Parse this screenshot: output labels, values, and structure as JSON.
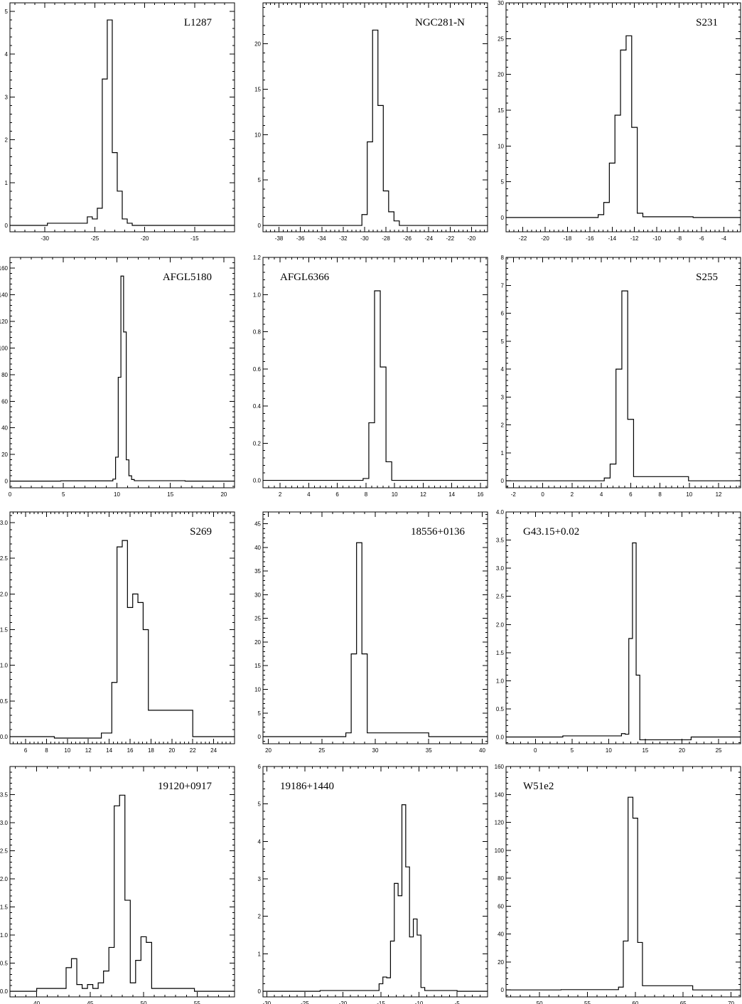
{
  "chart_data": [
    {
      "type": "line",
      "title": "L1287",
      "title_position": "top-right",
      "xlim": [
        -33.5,
        -11
      ],
      "ylim": [
        -0.15,
        5.2
      ],
      "xticks": [
        -30,
        -25,
        -20,
        -15
      ],
      "yticks": [
        0,
        1,
        2,
        3,
        4,
        5
      ],
      "series": [
        {
          "x": [
            -33.5,
            -26,
            -25.5,
            -25,
            -24.5,
            -24,
            -23.5,
            -23,
            -22.5,
            -22,
            -21.5,
            -21,
            -11
          ],
          "y": [
            0.0,
            0.05,
            0.2,
            0.15,
            0.4,
            3.42,
            4.8,
            1.7,
            0.8,
            0.15,
            0.05,
            0.0,
            0.0
          ]
        }
      ]
    },
    {
      "type": "line",
      "title": "NGC281-N",
      "title_position": "top-right",
      "xlim": [
        -39.5,
        -18.5
      ],
      "ylim": [
        -0.7,
        24.5
      ],
      "xticks": [
        -38,
        -36,
        -34,
        -32,
        -30,
        -28,
        -26,
        -24,
        -22,
        -20
      ],
      "yticks": [
        0,
        5,
        10,
        15,
        20
      ],
      "series": [
        {
          "x": [
            -39.5,
            -30.5,
            -30,
            -29.5,
            -29,
            -28.5,
            -28,
            -27.5,
            -27,
            -26.5,
            -18.5
          ],
          "y": [
            0.0,
            0.0,
            1.2,
            9.2,
            21.5,
            13.2,
            3.8,
            1.5,
            0.5,
            0.0,
            0.0
          ]
        }
      ]
    },
    {
      "type": "line",
      "title": "S231",
      "title_position": "top-right",
      "xlim": [
        -23.5,
        -2.5
      ],
      "ylim": [
        -2.0,
        30
      ],
      "xticks": [
        -22,
        -20,
        -18,
        -16,
        -14,
        -12,
        -10,
        -8,
        -6,
        -4
      ],
      "yticks": [
        0,
        5,
        10,
        15,
        20,
        25,
        30
      ],
      "series": [
        {
          "x": [
            -23.5,
            -15.5,
            -15,
            -14.5,
            -14,
            -13.5,
            -13,
            -12.5,
            -12,
            -11.5,
            -11,
            -2.5
          ],
          "y": [
            0.0,
            0.0,
            0.4,
            2.1,
            7.6,
            14.3,
            23.4,
            25.4,
            12.6,
            0.6,
            0.1,
            0.0
          ]
        }
      ]
    },
    {
      "type": "line",
      "title": "AFGL5180",
      "title_position": "top-right",
      "xlim": [
        0,
        21
      ],
      "ylim": [
        -5,
        168
      ],
      "xticks": [
        0,
        5,
        10,
        15,
        20
      ],
      "yticks": [
        0,
        20,
        40,
        60,
        80,
        100,
        120,
        140,
        160
      ],
      "series": [
        {
          "x": [
            0,
            9.5,
            9.75,
            10,
            10.25,
            10.5,
            10.75,
            11,
            11.25,
            11.5,
            11.75,
            21
          ],
          "y": [
            0.0,
            0.2,
            1.5,
            18,
            78,
            154,
            112,
            16,
            4,
            1.2,
            0.3,
            0.0
          ]
        }
      ]
    },
    {
      "type": "line",
      "title": "AFGL6366",
      "title_position": "top-left",
      "xlim": [
        0.8,
        16.5
      ],
      "ylim": [
        -0.04,
        1.2
      ],
      "xticks": [
        2,
        4,
        6,
        8,
        10,
        12,
        14,
        16
      ],
      "yticks": [
        0.0,
        0.2,
        0.4,
        0.6,
        0.8,
        1.0,
        1.2
      ],
      "series": [
        {
          "x": [
            0.8,
            7.6,
            8.0,
            8.4,
            8.8,
            9.2,
            9.6,
            10.0,
            16.5
          ],
          "y": [
            0.0,
            0.0,
            0.01,
            0.31,
            1.02,
            0.61,
            0.1,
            0.0,
            0.0
          ]
        }
      ]
    },
    {
      "type": "line",
      "title": "S255",
      "title_position": "top-right",
      "xlim": [
        -2.5,
        13.5
      ],
      "ylim": [
        -0.25,
        8
      ],
      "xticks": [
        -2,
        0,
        2,
        4,
        6,
        8,
        10,
        12
      ],
      "yticks": [
        0,
        1,
        2,
        3,
        4,
        5,
        6,
        7,
        8
      ],
      "series": [
        {
          "x": [
            -2.5,
            4.0,
            4.4,
            4.8,
            5.2,
            5.6,
            6.0,
            6.4,
            13.5
          ],
          "y": [
            0.0,
            0.0,
            0.1,
            0.6,
            4.0,
            6.8,
            2.2,
            0.15,
            0.0
          ]
        }
      ]
    },
    {
      "type": "line",
      "title": "S269",
      "title_position": "top-right",
      "xlim": [
        4.5,
        26
      ],
      "ylim": [
        -0.1,
        3.15
      ],
      "xticks": [
        6,
        8,
        10,
        12,
        14,
        16,
        18,
        20,
        22,
        24
      ],
      "yticks": [
        0.0,
        0.5,
        1.0,
        1.5,
        2.0,
        2.5,
        3.0
      ],
      "series": [
        {
          "x": [
            4.5,
            13.0,
            13.5,
            14.0,
            14.5,
            15.0,
            15.5,
            16.0,
            16.5,
            17.0,
            17.5,
            18.0,
            26
          ],
          "y": [
            0.0,
            -0.02,
            0.05,
            0.05,
            0.76,
            2.66,
            2.75,
            1.81,
            2.0,
            1.88,
            1.5,
            0.37,
            0.0
          ]
        }
      ]
    },
    {
      "type": "line",
      "title": "18556+0136",
      "title_position": "top-right",
      "xlim": [
        19.5,
        40.5
      ],
      "ylim": [
        -1.5,
        47.5
      ],
      "xticks": [
        20,
        25,
        30,
        35,
        40
      ],
      "yticks": [
        0,
        5,
        10,
        15,
        20,
        25,
        30,
        35,
        40,
        45
      ],
      "series": [
        {
          "x": [
            19.5,
            27.0,
            27.5,
            28.0,
            28.5,
            29.0,
            29.5,
            40.5
          ],
          "y": [
            0.0,
            0.0,
            0.8,
            17.5,
            41.0,
            17.5,
            0.8,
            0.0
          ]
        }
      ]
    },
    {
      "type": "line",
      "title": "G43.15+0.02",
      "title_position": "top-left",
      "xlim": [
        -4,
        28
      ],
      "ylim": [
        -0.12,
        4.0
      ],
      "xticks": [
        0,
        5,
        10,
        15,
        20,
        25
      ],
      "yticks": [
        0.0,
        0.5,
        1.0,
        1.5,
        2.0,
        2.5,
        3.0,
        3.5,
        4.0
      ],
      "series": [
        {
          "x": [
            -4,
            11.5,
            12.0,
            12.5,
            13.0,
            13.5,
            14.0,
            14.5,
            28
          ],
          "y": [
            0.0,
            0.02,
            0.06,
            0.05,
            1.75,
            3.45,
            1.1,
            -0.05,
            0.0
          ]
        }
      ]
    },
    {
      "type": "line",
      "title": "19120+0917",
      "title_position": "top-right",
      "xlim": [
        37.5,
        58.5
      ],
      "ylim": [
        -0.1,
        4.0
      ],
      "xticks": [
        40,
        45,
        50,
        55
      ],
      "yticks": [
        0.0,
        0.5,
        1.0,
        1.5,
        2.0,
        2.5,
        3.0,
        3.5
      ],
      "series": [
        {
          "x": [
            37.5,
            42.5,
            43.0,
            43.5,
            44.0,
            44.5,
            45.0,
            45.5,
            46.0,
            46.5,
            47.0,
            47.5,
            48.0,
            48.5,
            49.0,
            49.5,
            50.0,
            50.5,
            51.0,
            58.5
          ],
          "y": [
            0.0,
            0.05,
            0.42,
            0.58,
            0.12,
            0.05,
            0.12,
            0.05,
            0.15,
            0.36,
            0.78,
            3.3,
            3.49,
            1.62,
            0.15,
            0.55,
            0.97,
            0.87,
            0.05,
            0.0
          ]
        }
      ]
    },
    {
      "type": "line",
      "title": "19186+1440",
      "title_position": "top-left",
      "xlim": [
        -30.5,
        -1
      ],
      "ylim": [
        -0.15,
        6
      ],
      "xticks": [
        -30,
        -25,
        -20,
        -15,
        -10,
        -5
      ],
      "yticks": [
        0,
        1,
        2,
        3,
        4,
        5,
        6
      ],
      "series": [
        {
          "x": [
            -30.5,
            -15.5,
            -15.0,
            -14.5,
            -14.0,
            -13.5,
            -13.0,
            -12.5,
            -12.0,
            -11.5,
            -11.0,
            -10.5,
            -10.0,
            -9.5,
            -9.0,
            -1
          ],
          "y": [
            0.0,
            0.02,
            0.2,
            0.38,
            0.36,
            1.34,
            2.88,
            2.55,
            4.98,
            3.32,
            1.45,
            1.93,
            1.5,
            0.1,
            0.02,
            0.0
          ]
        }
      ]
    },
    {
      "type": "line",
      "title": "W51e2",
      "title_position": "top-left",
      "xlim": [
        46.5,
        71
      ],
      "ylim": [
        -5,
        160
      ],
      "xticks": [
        50,
        55,
        60,
        65,
        70
      ],
      "yticks": [
        0,
        20,
        40,
        60,
        80,
        100,
        120,
        140,
        160
      ],
      "series": [
        {
          "x": [
            46.5,
            58.0,
            58.5,
            59.0,
            59.5,
            60.0,
            60.5,
            61.0,
            71
          ],
          "y": [
            0.0,
            0.2,
            2,
            35,
            138,
            123,
            34,
            3,
            0.0
          ]
        }
      ]
    }
  ]
}
